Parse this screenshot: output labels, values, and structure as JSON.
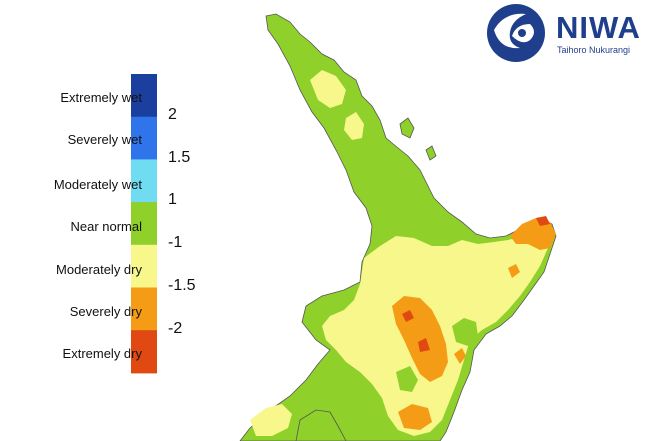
{
  "legend": {
    "categories": [
      {
        "label": "Extremely wet",
        "color": "#1b3f9e"
      },
      {
        "label": "Severely wet",
        "color": "#2f74ea"
      },
      {
        "label": "Moderately wet",
        "color": "#6fdcf2"
      },
      {
        "label": "Near normal",
        "color": "#8fd12a"
      },
      {
        "label": "Moderately dry",
        "color": "#f7f78c"
      },
      {
        "label": "Severely dry",
        "color": "#f59c16"
      },
      {
        "label": "Extremely dry",
        "color": "#e04a12"
      }
    ],
    "thresholds": [
      "2",
      "1.5",
      "1",
      "-1",
      "-1.5",
      "-2"
    ]
  },
  "logo": {
    "name": "NIWA",
    "subtitle": "Taihoro Nukurangi",
    "icon": "niwa-swirl-icon"
  },
  "map": {
    "region": "North Island, New Zealand",
    "water_color": "#ffffff",
    "outline_color": "#555555"
  }
}
